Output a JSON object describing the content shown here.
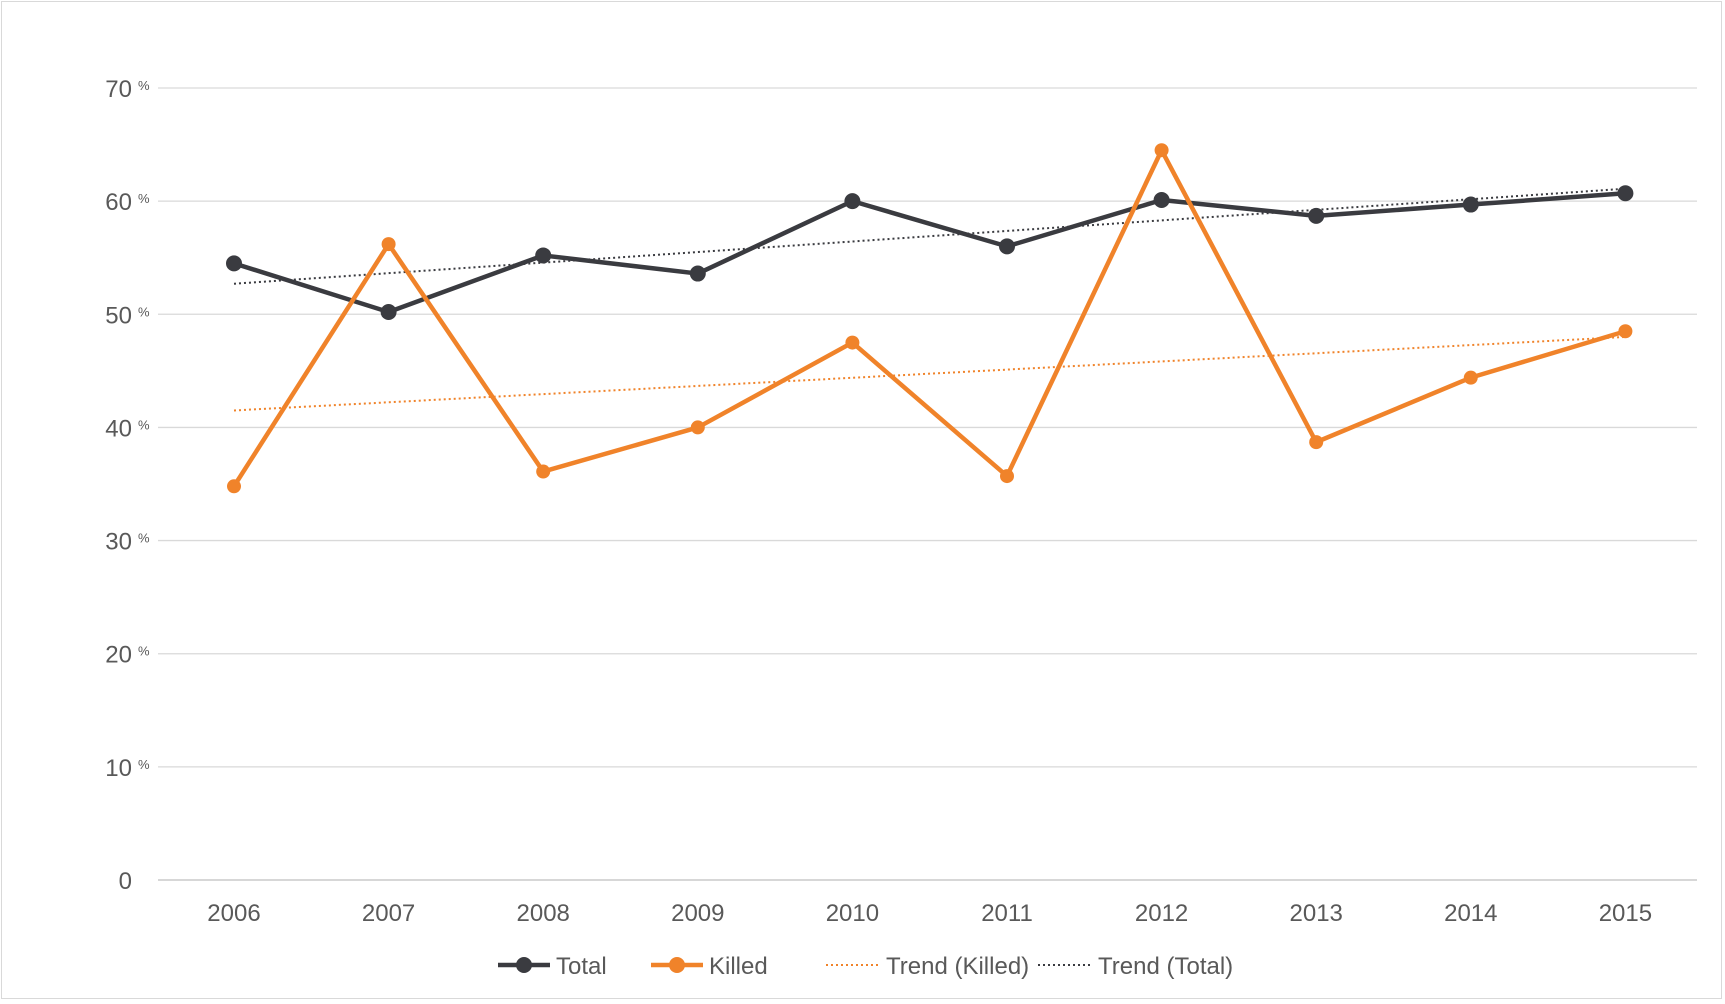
{
  "chart_data": {
    "type": "line",
    "categories": [
      "2006",
      "2007",
      "2008",
      "2009",
      "2010",
      "2011",
      "2012",
      "2013",
      "2014",
      "2015"
    ],
    "ylim": [
      0,
      70
    ],
    "yticks": [
      {
        "value": 0,
        "label": "0",
        "suffix": ""
      },
      {
        "value": 10,
        "label": "10",
        "suffix": "%"
      },
      {
        "value": 20,
        "label": "20",
        "suffix": "%"
      },
      {
        "value": 30,
        "label": "30",
        "suffix": "%"
      },
      {
        "value": 40,
        "label": "40",
        "suffix": "%"
      },
      {
        "value": 50,
        "label": "50",
        "suffix": "%"
      },
      {
        "value": 60,
        "label": "60",
        "suffix": "%"
      },
      {
        "value": 70,
        "label": "70",
        "suffix": "%"
      }
    ],
    "grid": true,
    "legend_position": "bottom",
    "series": [
      {
        "name": "Total",
        "color": "#3a3b40",
        "style": "solid-marker",
        "values": [
          54.5,
          50.2,
          55.2,
          53.6,
          60.0,
          56.0,
          60.1,
          58.7,
          59.7,
          60.7
        ]
      },
      {
        "name": "Killed",
        "color": "#f0832a",
        "style": "solid-marker",
        "values": [
          34.8,
          56.2,
          36.1,
          40.0,
          47.5,
          35.7,
          64.5,
          38.7,
          44.4,
          48.5
        ]
      }
    ],
    "trendlines": [
      {
        "name": "Trend (Killed)",
        "color": "#f0832a",
        "style": "dotted",
        "values": [
          41.5,
          48.0
        ]
      },
      {
        "name": "Trend (Total)",
        "color": "#3a3b40",
        "style": "dotted",
        "values": [
          52.7,
          61.1
        ]
      }
    ],
    "legend": [
      {
        "label": "Total",
        "color": "#3a3b40",
        "kind": "marker"
      },
      {
        "label": "Killed",
        "color": "#f0832a",
        "kind": "marker"
      },
      {
        "label": "Trend (Killed)",
        "color": "#f0832a",
        "kind": "dotted"
      },
      {
        "label": "Trend (Total)",
        "color": "#3a3b40",
        "kind": "dotted"
      }
    ]
  }
}
